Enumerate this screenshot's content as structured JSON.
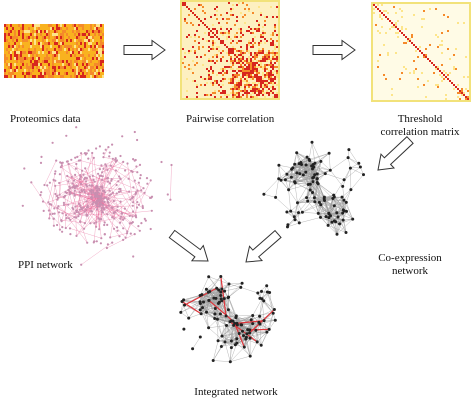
{
  "labels": {
    "proteomics": "Proteomics data",
    "pairwise": "Pairwise correlation",
    "threshold_line1": "Threshold",
    "threshold_line2": "correlation matrix",
    "ppi": "PPI network",
    "coexpr_line1": "Co-expression",
    "coexpr_line2": "network",
    "integrated": "Integrated network"
  },
  "colors": {
    "heatmap_dark": "#d7261e",
    "heatmap_mid": "#f58a2a",
    "heatmap_light": "#fde58a",
    "heatmap_border": "#f2e27a",
    "ppi_node": "#c88fb0",
    "ppi_edge": "#e86a9a",
    "network_edge": "#9a9a9a",
    "network_node": "#222222",
    "integrated_highlight": "#e0343a",
    "arrow": "#333333"
  },
  "icons": {
    "arrow": "hollow-right-arrow"
  }
}
